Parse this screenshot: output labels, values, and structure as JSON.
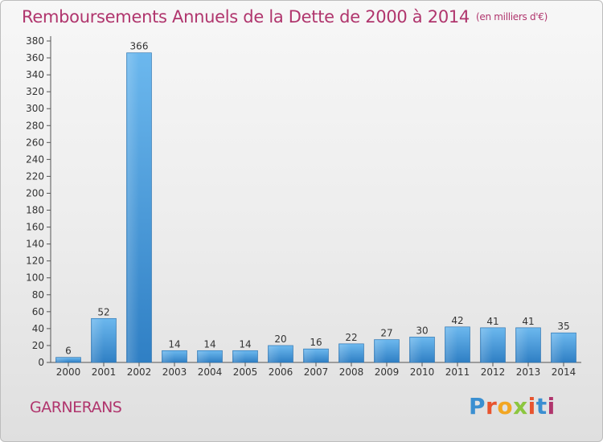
{
  "header": {
    "title": "Remboursements Annuels de la Dette de 2000 à 2014",
    "unit": "(en milliers d'€)"
  },
  "footer": {
    "commune": "GARNERANS",
    "brand": "Proxiti",
    "brand_colors": [
      "#3a8fd1",
      "#e8542f",
      "#f2a623",
      "#8cc63f",
      "#e8542f",
      "#3a8fd1",
      "#b0356d"
    ]
  },
  "chart_data": {
    "type": "bar",
    "title": "Remboursements Annuels de la Dette de 2000 à 2014",
    "xlabel": "",
    "ylabel": "",
    "categories": [
      "2000",
      "2001",
      "2002",
      "2003",
      "2004",
      "2005",
      "2006",
      "2007",
      "2008",
      "2009",
      "2010",
      "2011",
      "2012",
      "2013",
      "2014"
    ],
    "values": [
      6,
      52,
      366,
      14,
      14,
      14,
      20,
      16,
      22,
      27,
      30,
      42,
      41,
      41,
      35
    ],
    "ylim": [
      0,
      380
    ],
    "ytick_step": 20,
    "grid": false,
    "bar_color": "#4a9fdc",
    "title_color": "#b0356d"
  }
}
